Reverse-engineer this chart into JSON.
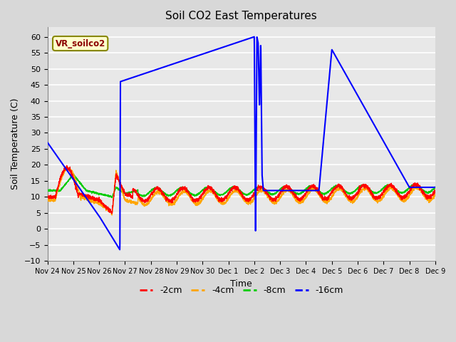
{
  "title": "Soil CO2 East Temperatures",
  "xlabel": "Time",
  "ylabel": "Soil Temperature (C)",
  "ylim": [
    -10,
    63
  ],
  "yticks": [
    -10,
    -5,
    0,
    5,
    10,
    15,
    20,
    25,
    30,
    35,
    40,
    45,
    50,
    55,
    60
  ],
  "legend_label": "VR_soilco2",
  "series_labels": [
    "-2cm",
    "-4cm",
    "-8cm",
    "-16cm"
  ],
  "series_colors": [
    "#ff0000",
    "#ffa500",
    "#00cc00",
    "#0000ff"
  ],
  "bg_color": "#d8d8d8",
  "plot_bg_color": "#e8e8e8",
  "grid_color": "#ffffff",
  "xtick_labels": [
    "Nov 24",
    "Nov 25",
    "Nov 26",
    "Nov 27",
    "Nov 28",
    "Nov 29",
    "Nov 30",
    "Dec 1",
    "Dec 2",
    "Dec 3",
    "Dec 4",
    "Dec 5",
    "Dec 6",
    "Dec 7",
    "Dec 8",
    "Dec 9"
  ],
  "blue_key_points": [
    [
      0.0,
      27.0
    ],
    [
      2.0,
      4.0
    ],
    [
      2.8,
      -6.5
    ],
    [
      2.82,
      46.0
    ],
    [
      8.0,
      60.0
    ],
    [
      8.05,
      -3.0
    ],
    [
      8.1,
      60.0
    ],
    [
      8.15,
      58.0
    ],
    [
      8.2,
      38.0
    ],
    [
      8.25,
      58.0
    ],
    [
      8.3,
      17.0
    ],
    [
      8.35,
      12.0
    ],
    [
      10.5,
      12.0
    ],
    [
      11.0,
      56.0
    ],
    [
      14.0,
      13.0
    ],
    [
      15.0,
      13.0
    ]
  ]
}
